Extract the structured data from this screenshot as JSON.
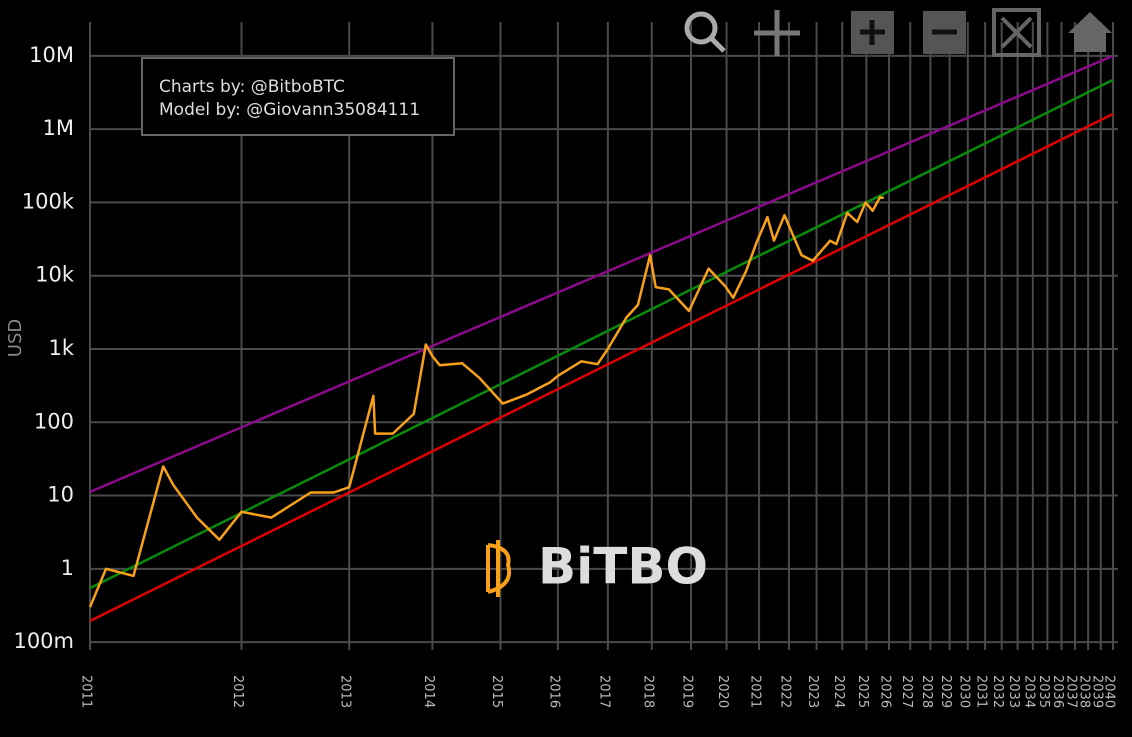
{
  "chart_data": {
    "type": "line",
    "annotations": [
      "Charts by: @BitboBTC",
      "Model by: @Giovann35084111"
    ],
    "watermark": "BiTBO",
    "ylabel": "USD",
    "xscale": "log",
    "yscale": "log",
    "grid": true,
    "xlim": [
      728,
      11320
    ],
    "ylim": [
      0.078,
      29000000
    ],
    "xticks": [
      {
        "value": 728,
        "label": "2011"
      },
      {
        "value": 1093,
        "label": "2012"
      },
      {
        "value": 1459,
        "label": "2013"
      },
      {
        "value": 1824,
        "label": "2014"
      },
      {
        "value": 2189,
        "label": "2015"
      },
      {
        "value": 2554,
        "label": "2016"
      },
      {
        "value": 2920,
        "label": "2017"
      },
      {
        "value": 3285,
        "label": "2018"
      },
      {
        "value": 3650,
        "label": "2019"
      },
      {
        "value": 4015,
        "label": "2020"
      },
      {
        "value": 4381,
        "label": "2021"
      },
      {
        "value": 4746,
        "label": "2022"
      },
      {
        "value": 5111,
        "label": "2023"
      },
      {
        "value": 5476,
        "label": "2024"
      },
      {
        "value": 5842,
        "label": "2025"
      },
      {
        "value": 6207,
        "label": "2026"
      },
      {
        "value": 6572,
        "label": "2027"
      },
      {
        "value": 6937,
        "label": "2028"
      },
      {
        "value": 7303,
        "label": "2029"
      },
      {
        "value": 7668,
        "label": "2030"
      },
      {
        "value": 8033,
        "label": "2031"
      },
      {
        "value": 8398,
        "label": "2032"
      },
      {
        "value": 8764,
        "label": "2033"
      },
      {
        "value": 9129,
        "label": "2034"
      },
      {
        "value": 9494,
        "label": "2035"
      },
      {
        "value": 9859,
        "label": "2036"
      },
      {
        "value": 10225,
        "label": "2037"
      },
      {
        "value": 10590,
        "label": "2038"
      },
      {
        "value": 10955,
        "label": "2039"
      },
      {
        "value": 11320,
        "label": "2040"
      }
    ],
    "yticks": [
      {
        "value": 0.1,
        "label": "100m"
      },
      1,
      10,
      100,
      {
        "value": 1000,
        "label": "1k"
      },
      {
        "value": 10000,
        "label": "10k"
      },
      {
        "value": 100000,
        "label": "100k"
      },
      {
        "value": 1000000,
        "label": "1M"
      },
      {
        "value": 10000000,
        "label": "10M"
      }
    ],
    "series": [
      {
        "color": "#8b0a8b",
        "x": [
          728,
          11320
        ],
        "values": [
          11.2,
          10000000
        ]
      },
      {
        "color": "#0a8a0a",
        "x": [
          728,
          11320
        ],
        "values": [
          0.546,
          4700000
        ]
      },
      {
        "color": "#e00000",
        "x": [
          728,
          11320
        ],
        "values": [
          0.194,
          1610000
        ]
      },
      {
        "color": "#f7a11a",
        "x": [
          728,
          760,
          818,
          886,
          910,
          970,
          1030,
          1093,
          1184,
          1316,
          1400,
          1459,
          1557,
          1564,
          1640,
          1735,
          1792,
          1824,
          1860,
          1975,
          2070,
          2203,
          2350,
          2500,
          2554,
          2720,
          2840,
          2920,
          3070,
          3165,
          3270,
          3320,
          3440,
          3630,
          3826,
          4000,
          4087,
          4230,
          4350,
          4480,
          4560,
          4690,
          4910,
          5060,
          5300,
          5390,
          5550,
          5700,
          5830,
          5940,
          6060,
          6120
        ],
        "values": [
          0.3,
          1.0,
          0.8,
          25,
          14,
          5,
          2.5,
          6,
          5,
          11,
          11,
          13,
          230,
          70,
          70,
          130,
          1150,
          800,
          600,
          640,
          400,
          180,
          240,
          350,
          430,
          680,
          620,
          1000,
          2700,
          4000,
          19000,
          7000,
          6500,
          3300,
          12500,
          7200,
          5000,
          11500,
          28000,
          63000,
          30000,
          67000,
          19000,
          16000,
          30000,
          27000,
          72000,
          54000,
          100000,
          77000,
          118000,
          115000
        ]
      }
    ]
  }
}
